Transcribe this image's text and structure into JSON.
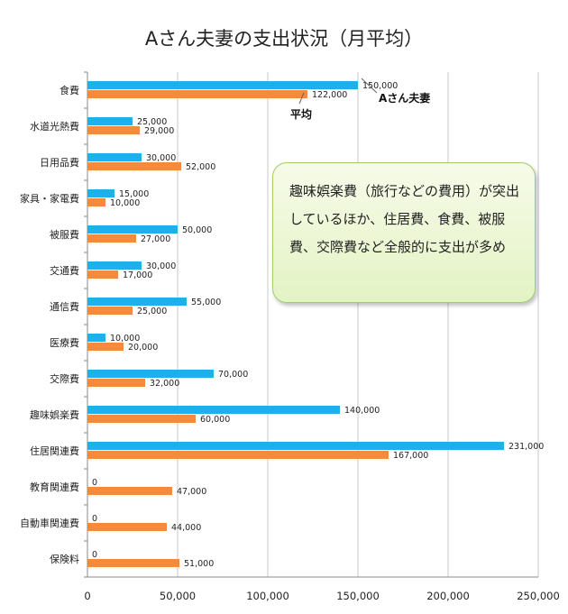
{
  "colors": {
    "a_fusai": "#1eb0e6",
    "heikin": "#f48a3c",
    "grid": "#c8c8c8"
  },
  "note": "趣味娯楽費（旅行などの費用）が突出しているほか、住居費、食費、被服費、交際費など全般的に支出が多め",
  "chart_data": {
    "type": "bar",
    "orientation": "horizontal",
    "title": "Aさん夫妻の支出状況（月平均）",
    "categories": [
      "食費",
      "水道光熱費",
      "日用品費",
      "家具・家電費",
      "被服費",
      "交通費",
      "通信費",
      "医療費",
      "交際費",
      "趣味娯楽費",
      "住居関連費",
      "教育関連費",
      "自動車関連費",
      "保険料"
    ],
    "series": [
      {
        "name": "Aさん夫妻",
        "values": [
          150000,
          25000,
          30000,
          15000,
          50000,
          30000,
          55000,
          10000,
          70000,
          140000,
          231000,
          0,
          0,
          0
        ],
        "labels": [
          "150,000",
          "25,000",
          "30,000",
          "15,000",
          "50,000",
          "30,000",
          "55,000",
          "10,000",
          "70,000",
          "140,000",
          "231,000",
          "0",
          "0",
          "0"
        ]
      },
      {
        "name": "平均",
        "values": [
          122000,
          29000,
          52000,
          10000,
          27000,
          17000,
          25000,
          20000,
          32000,
          60000,
          167000,
          47000,
          44000,
          51000
        ],
        "labels": [
          "122,000",
          "29,000",
          "52,000",
          "10,000",
          "27,000",
          "17,000",
          "25,000",
          "20,000",
          "32,000",
          "60,000",
          "167,000",
          "47,000",
          "44,000",
          "51,000"
        ]
      }
    ],
    "xlim": [
      0,
      250000
    ],
    "xticks": [
      0,
      50000,
      100000,
      150000,
      200000,
      250000
    ],
    "xtick_labels": [
      "0",
      "50,000",
      "100,000",
      "150,000",
      "200,000",
      "250,000"
    ],
    "grid": true
  }
}
